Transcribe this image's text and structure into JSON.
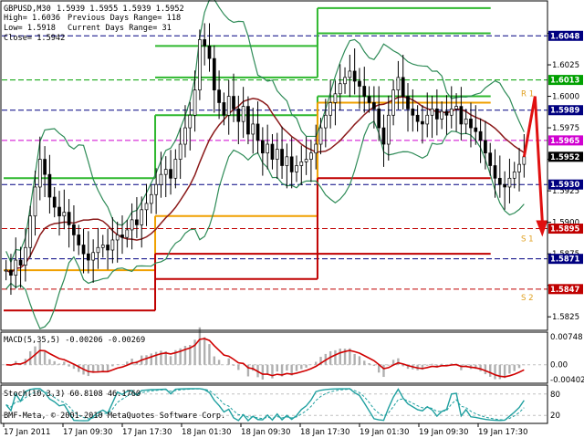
{
  "header": {
    "line1_symbol": "GBPUSD,M30",
    "line1_ohlc": "1.5939 1.5955 1.5939 1.5952",
    "line2_high": "High= 1.6036",
    "line2_prev": "Previous Days Range= 118",
    "line3_low": "Low= 1.5918",
    "line3_curr": "Current Days Range= 31",
    "line4_close": "Close= 1.5942"
  },
  "price_axis": {
    "ticks": [
      "1.6050",
      "1.6025",
      "1.6000",
      "1.5975",
      "1.5950",
      "1.5925",
      "1.5900",
      "1.5875",
      "1.5850",
      "1.5825"
    ],
    "tick_labels_shown": [
      "1.6025",
      "1.6000",
      "1.5975",
      "1.5925",
      "1.5900",
      "1.5875",
      "1.5825"
    ],
    "tags": [
      {
        "label": "1.6048",
        "price": 1.6048,
        "bg": "#000080",
        "fg": "#ffffff"
      },
      {
        "label": "1.6013",
        "price": 1.6013,
        "bg": "#00a000",
        "fg": "#ffffff"
      },
      {
        "label": "1.5989",
        "price": 1.5989,
        "bg": "#000080",
        "fg": "#ffffff"
      },
      {
        "label": "1.5965",
        "price": 1.5965,
        "bg": "#d000d0",
        "fg": "#ffffff"
      },
      {
        "label": "1.5952",
        "price": 1.5952,
        "bg": "#000000",
        "fg": "#ffffff"
      },
      {
        "label": "1.5930",
        "price": 1.593,
        "bg": "#000080",
        "fg": "#ffffff"
      },
      {
        "label": "1.5895",
        "price": 1.5895,
        "bg": "#c00000",
        "fg": "#ffffff"
      },
      {
        "label": "1.5871",
        "price": 1.5871,
        "bg": "#000080",
        "fg": "#ffffff"
      },
      {
        "label": "1.5847",
        "price": 1.5847,
        "bg": "#c00000",
        "fg": "#ffffff"
      }
    ],
    "range": [
      1.5815,
      1.6075
    ]
  },
  "pivot_labels": [
    {
      "text": "R 1",
      "price": 1.6
    },
    {
      "text": "S 1",
      "price": 1.5885
    },
    {
      "text": "S 2",
      "price": 1.5838
    }
  ],
  "macd": {
    "title": "MACD(5,35,5) -0.00206 -0.00269",
    "ticks": [
      "0.00748",
      "0.00",
      "-0.00402"
    ],
    "range": [
      -0.0047,
      0.0082
    ]
  },
  "stoch": {
    "title": "Stoch(10,3,3) 60.8108 46.1760",
    "ticks": [
      "80",
      "20"
    ],
    "range": [
      0,
      100
    ]
  },
  "time_axis": {
    "labels": [
      "17 Jan 2011",
      "17 Jan 09:30",
      "17 Jan 17:30",
      "18 Jan 01:30",
      "18 Jan 09:30",
      "18 Jan 17:30",
      "19 Jan 01:30",
      "19 Jan 09:30",
      "19 Jan 17:30"
    ]
  },
  "copyright": "BMF-Meta, © 2001-2010 MetaQuotes Software Corp.",
  "chart_data": {
    "type": "candlestick",
    "symbol": "GBPUSD",
    "timeframe": "M30",
    "ylim": [
      1.5815,
      1.6075
    ],
    "close_path": [
      1.5862,
      1.5858,
      1.587,
      1.5866,
      1.588,
      1.5905,
      1.5928,
      1.595,
      1.5938,
      1.592,
      1.5912,
      1.5905,
      1.5908,
      1.5898,
      1.589,
      1.5882,
      1.5875,
      1.587,
      1.5876,
      1.588,
      1.5882,
      1.5878,
      1.5886,
      1.589,
      1.5888,
      1.5894,
      1.5902,
      1.5898,
      1.591,
      1.5915,
      1.5922,
      1.593,
      1.5938,
      1.5942,
      1.5935,
      1.595,
      1.5962,
      1.5975,
      1.5985,
      1.6005,
      1.6045,
      1.604,
      1.603,
      1.6005,
      1.5995,
      1.5985,
      1.6,
      1.599,
      1.598,
      1.5992,
      1.597,
      1.5978,
      1.5965,
      1.5955,
      1.5962,
      1.595,
      1.5958,
      1.5945,
      1.5952,
      1.594,
      1.5945,
      1.5948,
      1.595,
      1.5955,
      1.5962,
      1.5975,
      1.5985,
      1.5995,
      1.6002,
      1.601,
      1.6015,
      1.602,
      1.6012,
      1.6008,
      1.6,
      1.5995,
      1.599,
      1.5975,
      1.5962,
      1.5985,
      1.6005,
      1.6015,
      1.6,
      1.599,
      1.5985,
      1.598,
      1.5978,
      1.5985,
      1.599,
      1.5982,
      1.5988,
      1.5985,
      1.599,
      1.5992,
      1.5978,
      1.5982,
      1.5975,
      1.5972,
      1.5965,
      1.5955,
      1.5945,
      1.5935,
      1.593,
      1.5928,
      1.5935,
      1.594,
      1.5946,
      1.5952
    ],
    "pivot_levels": [
      {
        "name": "R3",
        "segments": [
          [
            0.28,
            0.58,
            1.604
          ],
          [
            0.58,
            0.9,
            1.607
          ]
        ],
        "color": "#2fb82f"
      },
      {
        "name": "R2",
        "segments": [
          [
            0.28,
            0.58,
            1.6015
          ],
          [
            0.58,
            0.9,
            1.605
          ]
        ],
        "color": "#2fb82f"
      },
      {
        "name": "R1",
        "segments": [
          [
            0.0,
            0.28,
            1.5935
          ],
          [
            0.28,
            0.58,
            1.5985
          ],
          [
            0.58,
            0.9,
            1.6
          ]
        ],
        "color": "#2fb82f"
      },
      {
        "name": "P",
        "segments": [
          [
            0.0,
            0.28,
            1.5862
          ],
          [
            0.28,
            0.58,
            1.5905
          ],
          [
            0.58,
            0.9,
            1.5995
          ]
        ],
        "color": "#f0a000"
      },
      {
        "name": "S1",
        "segments": [
          [
            0.0,
            0.28,
            1.583
          ],
          [
            0.28,
            0.58,
            1.5875
          ],
          [
            0.58,
            0.9,
            1.5935
          ]
        ],
        "color": "#c00000"
      },
      {
        "name": "S2",
        "segments": [
          [
            0.28,
            0.58,
            1.5855
          ],
          [
            0.58,
            0.9,
            1.5875
          ]
        ],
        "color": "#c00000"
      }
    ]
  },
  "colors": {
    "bg": "#ffffff",
    "candle": "#000000",
    "ma": "#8b1a1a",
    "bands": "#2e8b57",
    "macd_hist": "#b0b0b0",
    "macd_signal": "#d00000",
    "stoch_main": "#20a0a0",
    "stoch_signal": "#20a0a0",
    "arrow": "#e01010"
  }
}
